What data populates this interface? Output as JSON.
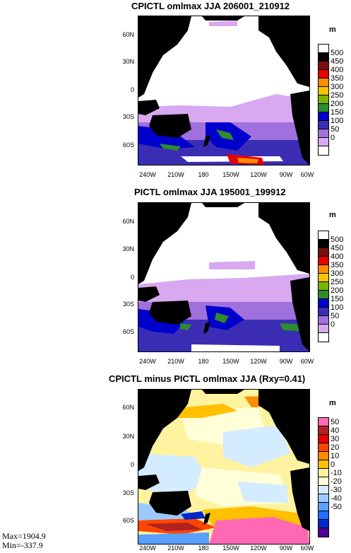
{
  "panels": [
    {
      "title": "CPICTL omlmax JJA 206001_210912",
      "unit": "m",
      "y_ticks": [
        "60N",
        "30N",
        "0",
        "30S",
        "60S"
      ],
      "x_ticks": [
        "240W",
        "210W",
        "180",
        "150W",
        "120W",
        "90W",
        "60W"
      ],
      "colorbar_labels": [
        "500",
        "450",
        "400",
        "350",
        "300",
        "250",
        "200",
        "150",
        "100",
        "50",
        "0"
      ],
      "colorbar_colors": [
        "#ffffff",
        "#000000",
        "#7a0f0f",
        "#e60000",
        "#ff8c00",
        "#f5c400",
        "#78b400",
        "#2e8b2e",
        "#0000cd",
        "#3a2db4",
        "#a070dc",
        "#d8a8f0",
        "#ffffff"
      ]
    },
    {
      "title": "PICTL omlmax JJA 195001_199912",
      "unit": "m",
      "y_ticks": [
        "60N",
        "30N",
        "0",
        "30S",
        "60S"
      ],
      "x_ticks": [
        "240W",
        "210W",
        "180",
        "150W",
        "120W",
        "90W",
        "60W"
      ],
      "colorbar_labels": [
        "500",
        "450",
        "400",
        "350",
        "300",
        "250",
        "200",
        "150",
        "100",
        "50",
        "0"
      ],
      "colorbar_colors": [
        "#ffffff",
        "#000000",
        "#7a0f0f",
        "#e60000",
        "#ff8c00",
        "#f5c400",
        "#78b400",
        "#2e8b2e",
        "#0000cd",
        "#3a2db4",
        "#a070dc",
        "#d8a8f0",
        "#ffffff"
      ]
    },
    {
      "title": "CPICTL minus PICTL omlmax JJA (Rxy=0.41)",
      "unit": "m",
      "y_ticks": [
        "60N",
        "30N",
        "0",
        "30S",
        "60S"
      ],
      "x_ticks": [
        "240W",
        "210W",
        "180",
        "150W",
        "120W",
        "90W",
        "60W"
      ],
      "colorbar_labels": [
        "50",
        "40",
        "30",
        "20",
        "10",
        "0",
        "-10",
        "-20",
        "-30",
        "-40",
        "-50"
      ],
      "colorbar_colors": [
        "#ff69b4",
        "#b22222",
        "#e60000",
        "#ff4500",
        "#ff8c00",
        "#ffc000",
        "#fff3a0",
        "#ffffd8",
        "#d4ecff",
        "#9ccaff",
        "#5aa0ff",
        "#1e6eff",
        "#0028c8",
        "#4b0096"
      ]
    }
  ],
  "stats": {
    "max": "Max=1904.9",
    "min": "Min=-337.9"
  }
}
